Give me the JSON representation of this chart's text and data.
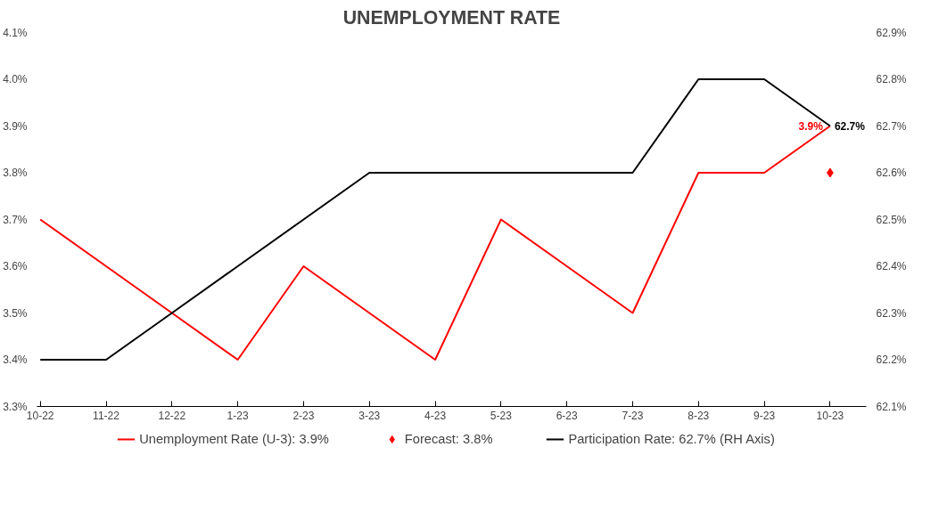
{
  "chart_data": {
    "type": "line",
    "title": "UNEMPLOYMENT RATE",
    "categories": [
      "10-22",
      "11-22",
      "12-22",
      "1-23",
      "2-23",
      "3-23",
      "4-23",
      "5-23",
      "6-23",
      "7-23",
      "8-23",
      "9-23",
      "10-23"
    ],
    "series": [
      {
        "name": "Unemployment Rate (U-3): 3.9%",
        "color": "#ff0000",
        "values": [
          3.7,
          3.6,
          3.5,
          3.4,
          3.6,
          3.5,
          3.4,
          3.7,
          3.6,
          3.5,
          3.8,
          3.8,
          3.9
        ],
        "value_labels": [
          null,
          null,
          null,
          null,
          null,
          null,
          null,
          null,
          null,
          null,
          null,
          null,
          "3.9%"
        ]
      },
      {
        "name": "Forecast: 3.8%",
        "type": "scatter",
        "marker": "diamond",
        "color": "#ff0000",
        "values": [
          null,
          null,
          null,
          null,
          null,
          null,
          null,
          null,
          null,
          null,
          null,
          null,
          3.8
        ]
      },
      {
        "name": "Participation Rate: 62.7% (RH Axis)",
        "axis": "y2",
        "color": "#000000",
        "values": [
          62.2,
          62.2,
          62.3,
          62.4,
          62.5,
          62.6,
          62.6,
          62.6,
          62.6,
          62.6,
          62.8,
          62.8,
          62.7
        ],
        "value_labels": [
          null,
          null,
          null,
          null,
          null,
          null,
          null,
          null,
          null,
          null,
          null,
          null,
          "62.7%"
        ]
      }
    ],
    "ylim": [
      3.3,
      4.1
    ],
    "yticks": [
      {
        "value": 3.3,
        "label": "3.3%"
      },
      {
        "value": 3.4,
        "label": "3.4%"
      },
      {
        "value": 3.5,
        "label": "3.5%"
      },
      {
        "value": 3.6,
        "label": "3.6%"
      },
      {
        "value": 3.7,
        "label": "3.7%"
      },
      {
        "value": 3.8,
        "label": "3.8%"
      },
      {
        "value": 3.9,
        "label": "3.9%"
      },
      {
        "value": 4.0,
        "label": "4.0%"
      },
      {
        "value": 4.1,
        "label": "4.1%"
      }
    ],
    "y2lim": [
      62.1,
      62.9
    ],
    "y2ticks": [
      {
        "value": 62.1,
        "label": "62.1%"
      },
      {
        "value": 62.2,
        "label": "62.2%"
      },
      {
        "value": 62.3,
        "label": "62.3%"
      },
      {
        "value": 62.4,
        "label": "62.4%"
      },
      {
        "value": 62.5,
        "label": "62.5%"
      },
      {
        "value": 62.6,
        "label": "62.6%"
      },
      {
        "value": 62.7,
        "label": "62.7%"
      },
      {
        "value": 62.8,
        "label": "62.8%"
      },
      {
        "value": 62.9,
        "label": "62.9%"
      }
    ],
    "grid": false,
    "legend": "bottom",
    "marker": "none",
    "line_style": "solid"
  }
}
